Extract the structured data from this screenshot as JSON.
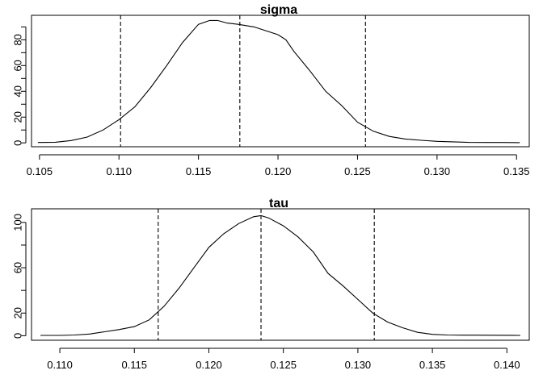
{
  "chart_data": [
    {
      "type": "line",
      "title": "sigma",
      "xlim": [
        0.1045,
        0.1358
      ],
      "ylim": [
        -3,
        99
      ],
      "x_ticks": [
        0.105,
        0.11,
        0.115,
        0.12,
        0.125,
        0.13,
        0.135
      ],
      "x_tick_labels": [
        "0.105",
        "0.110",
        "0.115",
        "0.120",
        "0.125",
        "0.130",
        "0.135"
      ],
      "y_ticks": [
        0,
        20,
        40,
        60,
        80
      ],
      "y_tick_labels": [
        "0",
        "20",
        "40",
        "60",
        "80"
      ],
      "y_minor_ticks": [
        10,
        30,
        50,
        70,
        90
      ],
      "vlines": [
        0.1101,
        0.1176,
        0.1255
      ],
      "series": [
        {
          "x": [
            0.1049,
            0.106,
            0.107,
            0.108,
            0.109,
            0.11,
            0.111,
            0.112,
            0.113,
            0.114,
            0.115,
            0.1157,
            0.1162,
            0.1168,
            0.1175,
            0.118,
            0.1185,
            0.119,
            0.12,
            0.1205,
            0.121,
            0.122,
            0.123,
            0.124,
            0.125,
            0.126,
            0.127,
            0.128,
            0.129,
            0.13,
            0.131,
            0.132,
            0.133,
            0.134,
            0.1352
          ],
          "values": [
            0.3,
            0.5,
            1.8,
            4.5,
            10,
            18,
            28,
            43,
            60,
            78,
            92,
            95,
            95,
            93,
            92,
            91,
            90,
            88,
            84,
            80,
            71,
            56,
            40,
            29,
            16,
            9,
            5,
            3,
            2,
            1.2,
            0.8,
            0.4,
            0.3,
            0.3,
            0.2
          ]
        }
      ]
    },
    {
      "type": "line",
      "title": "tau",
      "xlim": [
        0.1081,
        0.1415
      ],
      "ylim": [
        -4,
        112
      ],
      "x_ticks": [
        0.11,
        0.115,
        0.12,
        0.125,
        0.13,
        0.135,
        0.14
      ],
      "x_tick_labels": [
        "0.110",
        "0.115",
        "0.120",
        "0.125",
        "0.130",
        "0.135",
        "0.140"
      ],
      "y_ticks": [
        0,
        20,
        60,
        100
      ],
      "y_tick_labels": [
        "0",
        "20",
        "60",
        "100"
      ],
      "y_minor_ticks": [
        40,
        80
      ],
      "vlines": [
        0.1166,
        0.1235,
        0.1311
      ],
      "series": [
        {
          "x": [
            0.1087,
            0.11,
            0.111,
            0.112,
            0.113,
            0.114,
            0.115,
            0.116,
            0.117,
            0.118,
            0.119,
            0.12,
            0.121,
            0.122,
            0.123,
            0.1235,
            0.124,
            0.125,
            0.126,
            0.127,
            0.128,
            0.129,
            0.13,
            0.131,
            0.132,
            0.133,
            0.134,
            0.135,
            0.136,
            0.137,
            0.138,
            0.139,
            0.1409
          ],
          "values": [
            0.3,
            0.3,
            0.6,
            1.5,
            3.5,
            5.5,
            8,
            14,
            26,
            42,
            60,
            78,
            90,
            99,
            105,
            106,
            104,
            97,
            87,
            74,
            55,
            44,
            32,
            20,
            12,
            7,
            3,
            1.2,
            0.6,
            0.5,
            0.5,
            0.4,
            0.3
          ]
        }
      ]
    }
  ]
}
